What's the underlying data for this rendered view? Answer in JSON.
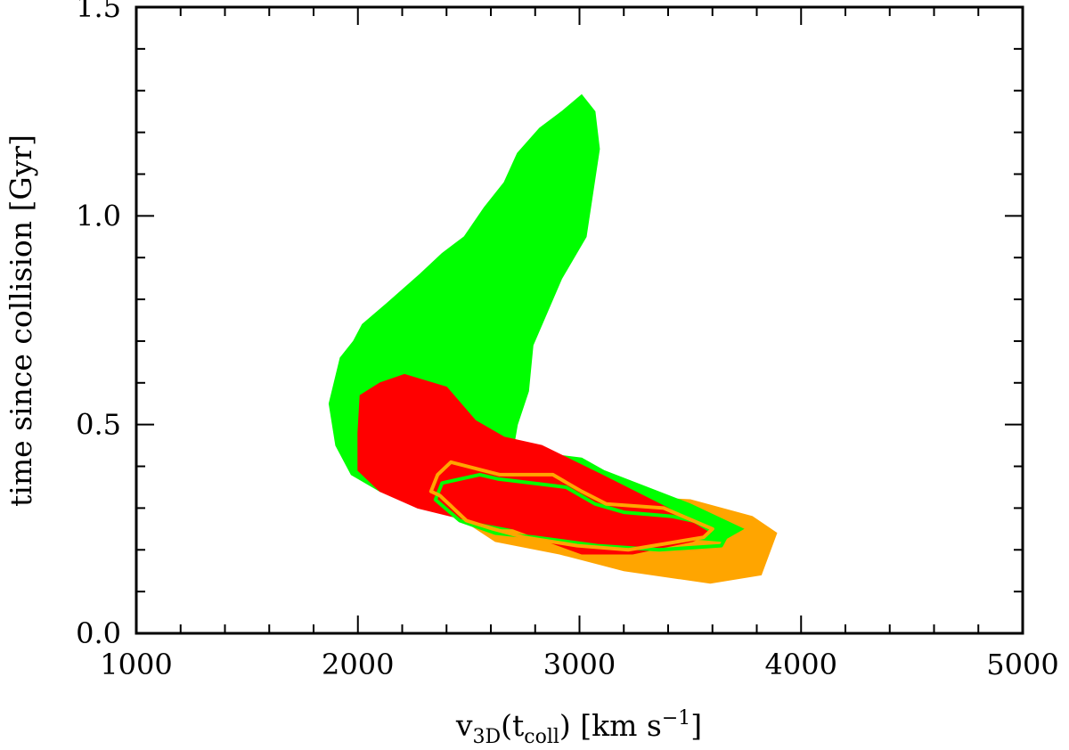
{
  "chart_data": {
    "type": "area",
    "title": "",
    "xlabel": {
      "main": "v",
      "main_sub": "3D",
      "paren_open": "(t",
      "paren_sub": "coll",
      "paren_close": ")",
      "units_open": "[km s",
      "units_sup": "−1",
      "units_close": "]"
    },
    "ylabel": "time since collision [Gyr]",
    "xlim": [
      1000,
      5000
    ],
    "ylim": [
      0.0,
      1.5
    ],
    "x_major_ticks": [
      1000,
      2000,
      3000,
      4000,
      5000
    ],
    "x_tick_labels": [
      "1000",
      "2000",
      "3000",
      "4000",
      "5000"
    ],
    "x_minor_step": 200,
    "y_major_ticks": [
      0.0,
      0.5,
      1.0,
      1.5
    ],
    "y_tick_labels": [
      "0.0",
      "0.5",
      "1.0",
      "1.5"
    ],
    "y_minor_step": 0.1,
    "grid": false,
    "legend": "none",
    "series": [
      {
        "kind": "filled",
        "color": "#ffa500",
        "points": [
          [
            2410,
            0.39
          ],
          [
            2530,
            0.37
          ],
          [
            2950,
            0.34
          ],
          [
            3120,
            0.33
          ],
          [
            3500,
            0.32
          ],
          [
            3780,
            0.28
          ],
          [
            3890,
            0.24
          ],
          [
            3820,
            0.14
          ],
          [
            3590,
            0.12
          ],
          [
            3200,
            0.15
          ],
          [
            2910,
            0.19
          ],
          [
            2620,
            0.22
          ],
          [
            2420,
            0.29
          ],
          [
            2300,
            0.34
          ]
        ]
      },
      {
        "kind": "filled",
        "color": "#00ff00",
        "points": [
          [
            3010,
            1.29
          ],
          [
            3070,
            1.25
          ],
          [
            3090,
            1.16
          ],
          [
            3030,
            0.95
          ],
          [
            2920,
            0.85
          ],
          [
            2790,
            0.69
          ],
          [
            2770,
            0.58
          ],
          [
            2720,
            0.5
          ],
          [
            2700,
            0.44
          ],
          [
            3010,
            0.42
          ],
          [
            3110,
            0.39
          ],
          [
            3500,
            0.31
          ],
          [
            3740,
            0.25
          ],
          [
            3640,
            0.22
          ],
          [
            3000,
            0.25
          ],
          [
            2620,
            0.25
          ],
          [
            2440,
            0.28
          ],
          [
            2100,
            0.34
          ],
          [
            1970,
            0.38
          ],
          [
            1900,
            0.45
          ],
          [
            1870,
            0.55
          ],
          [
            1920,
            0.66
          ],
          [
            1980,
            0.7
          ],
          [
            2020,
            0.74
          ],
          [
            2130,
            0.79
          ],
          [
            2280,
            0.86
          ],
          [
            2380,
            0.91
          ],
          [
            2480,
            0.95
          ],
          [
            2570,
            1.02
          ],
          [
            2660,
            1.08
          ],
          [
            2720,
            1.15
          ],
          [
            2820,
            1.21
          ],
          [
            2920,
            1.25
          ]
        ]
      },
      {
        "kind": "filled",
        "color": "#ff0000",
        "points": [
          [
            2210,
            0.62
          ],
          [
            2400,
            0.59
          ],
          [
            2530,
            0.51
          ],
          [
            2660,
            0.47
          ],
          [
            2830,
            0.45
          ],
          [
            3100,
            0.38
          ],
          [
            3400,
            0.3
          ],
          [
            3590,
            0.24
          ],
          [
            3510,
            0.22
          ],
          [
            3240,
            0.19
          ],
          [
            3010,
            0.19
          ],
          [
            2700,
            0.25
          ],
          [
            2500,
            0.27
          ],
          [
            2270,
            0.3
          ],
          [
            2100,
            0.34
          ],
          [
            2000,
            0.39
          ],
          [
            2000,
            0.48
          ],
          [
            2010,
            0.57
          ],
          [
            2100,
            0.6
          ]
        ]
      },
      {
        "kind": "contour",
        "color": "#00ff00",
        "points": [
          [
            2550,
            0.38
          ],
          [
            2630,
            0.37
          ],
          [
            2940,
            0.35
          ],
          [
            3070,
            0.31
          ],
          [
            3200,
            0.29
          ],
          [
            3420,
            0.28
          ],
          [
            3680,
            0.25
          ],
          [
            3640,
            0.21
          ],
          [
            3360,
            0.2
          ],
          [
            3080,
            0.21
          ],
          [
            2800,
            0.23
          ],
          [
            2620,
            0.24
          ],
          [
            2460,
            0.27
          ],
          [
            2350,
            0.32
          ],
          [
            2380,
            0.36
          ]
        ]
      },
      {
        "kind": "contour",
        "color": "#ffa500",
        "points": [
          [
            2420,
            0.41
          ],
          [
            2640,
            0.38
          ],
          [
            2880,
            0.38
          ],
          [
            3010,
            0.34
          ],
          [
            3120,
            0.31
          ],
          [
            3380,
            0.3
          ],
          [
            3600,
            0.25
          ],
          [
            3560,
            0.23
          ],
          [
            3220,
            0.2
          ],
          [
            2990,
            0.21
          ],
          [
            2750,
            0.23
          ],
          [
            2610,
            0.25
          ],
          [
            2490,
            0.27
          ],
          [
            2370,
            0.33
          ],
          [
            2330,
            0.34
          ],
          [
            2360,
            0.38
          ]
        ]
      }
    ]
  }
}
